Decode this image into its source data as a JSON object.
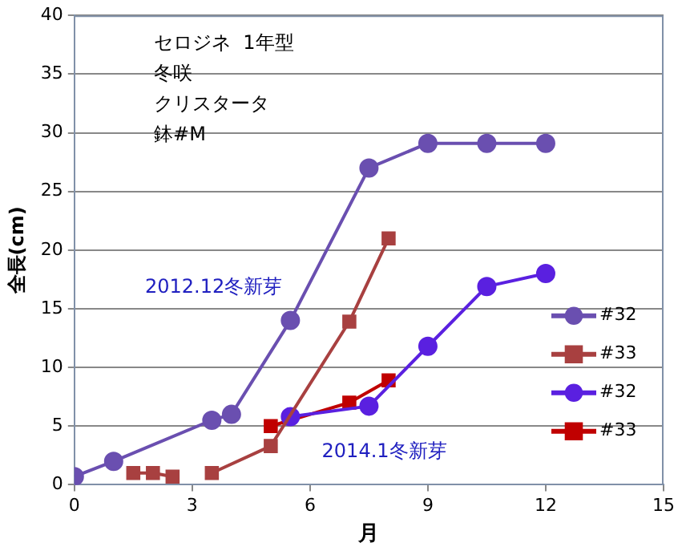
{
  "chart_data": {
    "type": "line",
    "xlabel": "月",
    "ylabel": "全長(cm)",
    "xlim": [
      0,
      15
    ],
    "xticks": [
      0,
      3,
      6,
      9,
      12,
      15
    ],
    "ylim": [
      0,
      40
    ],
    "yticks": [
      0,
      5,
      10,
      15,
      20,
      25,
      30,
      35,
      40
    ],
    "grid": "y",
    "legend": "right",
    "annotations": [
      "セロジネ  1年型",
      "冬咲",
      "クリスタータ",
      "鉢#M",
      "2012.12冬新芽",
      "2014.1冬新芽"
    ],
    "series": [
      {
        "name": "#32",
        "color": "#6a4fb0",
        "marker": "circle",
        "x": [
          0,
          1,
          3.5,
          4,
          5.5,
          7.5,
          9,
          10.5,
          12
        ],
        "values": [
          0.7,
          2,
          5.5,
          6,
          14,
          27,
          29.1,
          29.1,
          29.1
        ]
      },
      {
        "name": "#33",
        "color": "#a84040",
        "marker": "square",
        "x": [
          1.5,
          2,
          2.5,
          3,
          3.5,
          5,
          7,
          8
        ],
        "values": [
          1,
          1,
          0.7,
          null,
          1,
          3.3,
          13.9,
          21
        ]
      },
      {
        "name": "#32",
        "color": "#5a20e0",
        "marker": "circle",
        "x": [
          5.5,
          7.5,
          9,
          10.5,
          12
        ],
        "values": [
          5.8,
          6.7,
          11.8,
          16.9,
          18
        ]
      },
      {
        "name": "#33",
        "color": "#c00000",
        "marker": "square",
        "x": [
          5,
          7,
          8
        ],
        "values": [
          5,
          7,
          8.9
        ]
      }
    ]
  }
}
